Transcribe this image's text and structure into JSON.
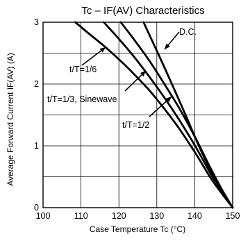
{
  "chart_data": {
    "type": "line",
    "title": "Tc – IF(AV) Characteristics",
    "xlabel": "Case Temperature  Tc (°C)",
    "ylabel": "Average Forward Current  IF(AV) (A)",
    "xlim": [
      100,
      150
    ],
    "ylim": [
      0,
      3
    ],
    "x_ticks": [
      "100",
      "110",
      "120",
      "130",
      "140",
      "150"
    ],
    "y_ticks": [
      "0",
      "1",
      "2",
      "3"
    ],
    "grid": true,
    "series": [
      {
        "name": "t/T=1/6",
        "x": [
          108.5,
          112,
          116,
          120,
          124,
          128,
          132,
          136,
          140,
          144,
          147,
          150
        ],
        "y": [
          3.0,
          2.82,
          2.62,
          2.4,
          2.16,
          1.9,
          1.6,
          1.27,
          0.9,
          0.5,
          0.24,
          0.0
        ]
      },
      {
        "name": "t/T=1/3, Sinewave",
        "x": [
          116,
          120,
          124,
          128,
          132,
          136,
          140,
          144,
          147,
          150
        ],
        "y": [
          3.0,
          2.73,
          2.44,
          2.12,
          1.78,
          1.41,
          1.01,
          0.57,
          0.28,
          0.0
        ]
      },
      {
        "name": "t/T=1/2",
        "x": [
          120.5,
          124,
          128,
          132,
          136,
          140,
          144,
          147,
          150
        ],
        "y": [
          3.0,
          2.72,
          2.38,
          2.0,
          1.6,
          1.15,
          0.66,
          0.31,
          0.0
        ]
      },
      {
        "name": "D.C.",
        "x": [
          126.5,
          129,
          132,
          135,
          138,
          141,
          144,
          147,
          150
        ],
        "y": [
          3.0,
          2.67,
          2.27,
          1.86,
          1.44,
          1.01,
          0.62,
          0.29,
          0.0
        ]
      }
    ],
    "annotations": [
      {
        "text": "D.C.",
        "series": "D.C."
      },
      {
        "text": "t/T=1/6",
        "series": "t/T=1/6"
      },
      {
        "text": "t/T=1/3, Sinewave",
        "series": "t/T=1/3, Sinewave"
      },
      {
        "text": "t/T=1/2",
        "series": "t/T=1/2"
      }
    ]
  }
}
